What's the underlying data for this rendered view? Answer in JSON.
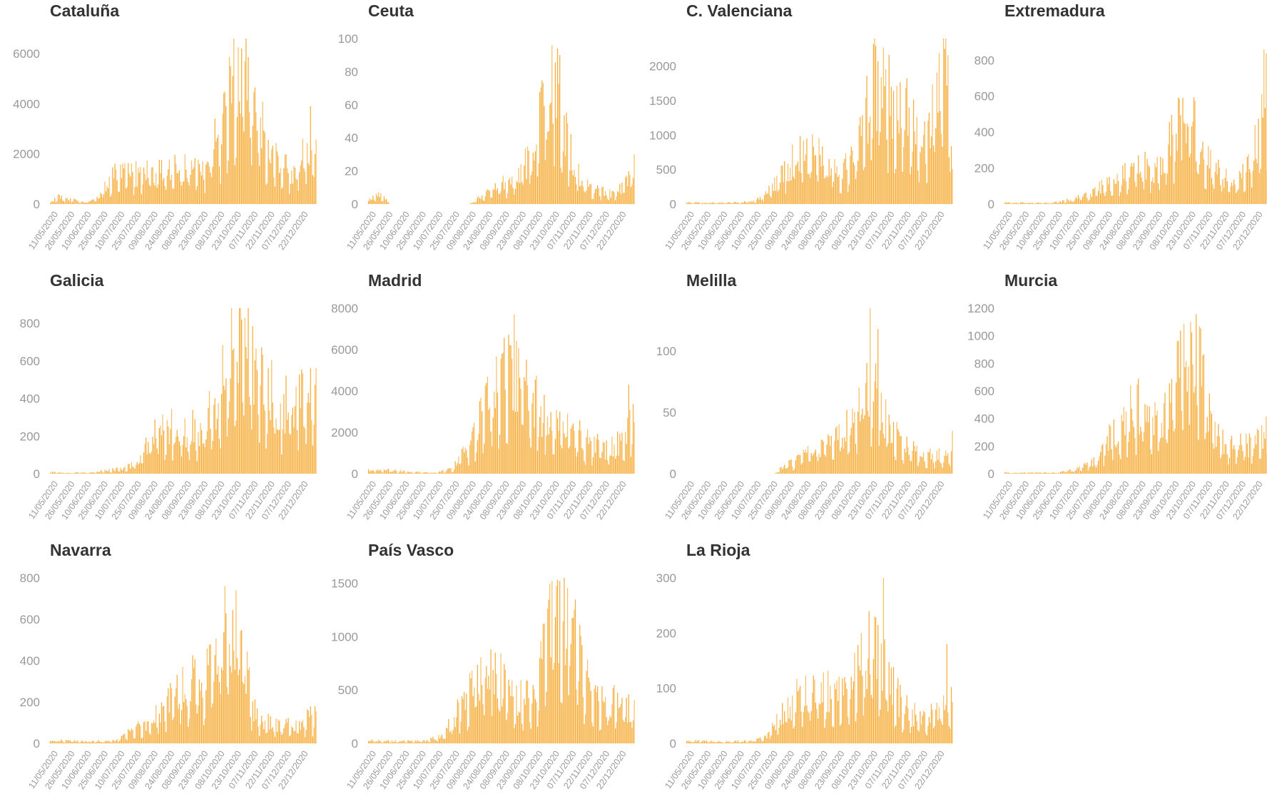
{
  "chart_data": [
    {
      "type": "bar",
      "title": "Cataluña",
      "yticks": [
        0,
        2000,
        4000,
        6000
      ],
      "ylim": [
        0,
        6600
      ],
      "xticks": [
        "11/05/2020",
        "26/05/2020",
        "10/06/2020",
        "25/06/2020",
        "10/07/2020",
        "25/07/2020",
        "09/08/2020",
        "24/08/2020",
        "08/09/2020",
        "23/09/2020",
        "08/10/2020",
        "23/10/2020",
        "07/11/2020",
        "22/11/2020",
        "07/12/2020",
        "22/12/2020"
      ],
      "profile": [
        [
          0,
          80
        ],
        [
          3,
          300
        ],
        [
          6,
          200
        ],
        [
          9,
          150
        ],
        [
          12,
          80
        ],
        [
          15,
          120
        ],
        [
          18,
          300
        ],
        [
          21,
          800
        ],
        [
          24,
          1150
        ],
        [
          30,
          1200
        ],
        [
          40,
          1300
        ],
        [
          50,
          1450
        ],
        [
          58,
          1700
        ],
        [
          63,
          2800
        ],
        [
          67,
          4300
        ],
        [
          70,
          5800
        ],
        [
          72,
          6100
        ],
        [
          75,
          5300
        ],
        [
          78,
          4200
        ],
        [
          81,
          2600
        ],
        [
          84,
          1900
        ],
        [
          88,
          1500
        ],
        [
          91,
          1250
        ],
        [
          94,
          1800
        ],
        [
          97,
          2300
        ],
        [
          100,
          2600
        ]
      ],
      "peaks": [
        [
          72,
          6200
        ],
        [
          98,
          3900
        ]
      ]
    },
    {
      "type": "bar",
      "title": "Ceuta",
      "yticks": [
        0,
        20,
        40,
        60,
        80,
        100
      ],
      "ylim": [
        0,
        100
      ],
      "xticks": [
        "11/05/2020",
        "26/05/2020",
        "10/06/2020",
        "25/06/2020",
        "10/07/2020",
        "25/07/2020",
        "09/08/2020",
        "24/08/2020",
        "08/09/2020",
        "23/09/2020",
        "08/10/2020",
        "23/10/2020",
        "07/11/2020",
        "22/11/2020",
        "07/12/2020",
        "22/12/2020"
      ],
      "profile": [
        [
          0,
          3
        ],
        [
          3,
          6
        ],
        [
          5,
          5
        ],
        [
          8,
          0
        ],
        [
          38,
          0
        ],
        [
          40,
          2
        ],
        [
          44,
          6
        ],
        [
          48,
          10
        ],
        [
          52,
          14
        ],
        [
          56,
          20
        ],
        [
          60,
          26
        ],
        [
          63,
          38
        ],
        [
          66,
          62
        ],
        [
          69,
          84
        ],
        [
          72,
          68
        ],
        [
          74,
          42
        ],
        [
          77,
          26
        ],
        [
          80,
          14
        ],
        [
          84,
          9
        ],
        [
          88,
          8
        ],
        [
          92,
          6
        ],
        [
          96,
          12
        ],
        [
          100,
          22
        ]
      ],
      "peaks": [
        [
          69,
          96
        ],
        [
          72,
          90
        ],
        [
          100,
          30
        ]
      ]
    },
    {
      "type": "bar",
      "title": "C. Valenciana",
      "yticks": [
        0,
        500,
        1000,
        1500,
        2000
      ],
      "ylim": [
        0,
        2400
      ],
      "xticks": [
        "11/05/2020",
        "26/05/2020",
        "10/06/2020",
        "25/06/2020",
        "10/07/2020",
        "25/07/2020",
        "09/08/2020",
        "24/08/2020",
        "08/09/2020",
        "23/09/2020",
        "08/10/2020",
        "23/10/2020",
        "07/11/2020",
        "22/11/2020",
        "07/12/2020",
        "22/12/2020"
      ],
      "profile": [
        [
          0,
          25
        ],
        [
          15,
          20
        ],
        [
          25,
          40
        ],
        [
          30,
          150
        ],
        [
          35,
          400
        ],
        [
          40,
          650
        ],
        [
          45,
          780
        ],
        [
          50,
          720
        ],
        [
          54,
          600
        ],
        [
          58,
          520
        ],
        [
          62,
          600
        ],
        [
          66,
          1150
        ],
        [
          70,
          1750
        ],
        [
          74,
          1850
        ],
        [
          78,
          1650
        ],
        [
          82,
          1450
        ],
        [
          86,
          1050
        ],
        [
          90,
          950
        ],
        [
          94,
          1550
        ],
        [
          97,
          2050
        ],
        [
          99,
          1500
        ],
        [
          100,
          900
        ]
      ],
      "peaks": [
        [
          75,
          1950
        ],
        [
          97,
          2250
        ]
      ]
    },
    {
      "type": "bar",
      "title": "Extremadura",
      "yticks": [
        0,
        200,
        400,
        600,
        800
      ],
      "ylim": [
        0,
        920
      ],
      "xticks": [
        "11/05/2020",
        "26/05/2020",
        "10/06/2020",
        "25/06/2020",
        "10/07/2020",
        "25/07/2020",
        "09/08/2020",
        "24/08/2020",
        "08/09/2020",
        "23/09/2020",
        "08/10/2020",
        "23/10/2020",
        "07/11/2020",
        "22/11/2020",
        "07/12/2020",
        "22/12/2020"
      ],
      "profile": [
        [
          0,
          8
        ],
        [
          18,
          8
        ],
        [
          25,
          25
        ],
        [
          32,
          60
        ],
        [
          38,
          110
        ],
        [
          44,
          180
        ],
        [
          48,
          250
        ],
        [
          52,
          210
        ],
        [
          56,
          200
        ],
        [
          60,
          260
        ],
        [
          64,
          420
        ],
        [
          68,
          520
        ],
        [
          71,
          480
        ],
        [
          74,
          320
        ],
        [
          78,
          220
        ],
        [
          82,
          160
        ],
        [
          86,
          110
        ],
        [
          90,
          180
        ],
        [
          94,
          320
        ],
        [
          97,
          580
        ],
        [
          100,
          780
        ]
      ],
      "peaks": [
        [
          67,
          590
        ],
        [
          100,
          880
        ]
      ]
    },
    {
      "type": "bar",
      "title": "Galicia",
      "yticks": [
        0,
        200,
        400,
        600,
        800
      ],
      "ylim": [
        0,
        880
      ],
      "xticks": [
        "11/05/2020",
        "26/05/2020",
        "10/06/2020",
        "25/06/2020",
        "10/07/2020",
        "25/07/2020",
        "09/08/2020",
        "24/08/2020",
        "08/09/2020",
        "23/09/2020",
        "08/10/2020",
        "23/10/2020",
        "07/11/2020",
        "22/11/2020",
        "07/12/2020",
        "22/12/2020"
      ],
      "profile": [
        [
          0,
          8
        ],
        [
          15,
          5
        ],
        [
          22,
          20
        ],
        [
          28,
          30
        ],
        [
          34,
          80
        ],
        [
          38,
          200
        ],
        [
          42,
          280
        ],
        [
          46,
          260
        ],
        [
          52,
          250
        ],
        [
          56,
          230
        ],
        [
          60,
          320
        ],
        [
          64,
          450
        ],
        [
          68,
          680
        ],
        [
          72,
          760
        ],
        [
          76,
          620
        ],
        [
          80,
          500
        ],
        [
          84,
          430
        ],
        [
          88,
          370
        ],
        [
          92,
          420
        ],
        [
          96,
          450
        ],
        [
          100,
          460
        ]
      ],
      "peaks": [
        [
          72,
          820
        ],
        [
          98,
          560
        ]
      ]
    },
    {
      "type": "bar",
      "title": "Madrid",
      "yticks": [
        0,
        2000,
        4000,
        6000,
        8000
      ],
      "ylim": [
        0,
        8000
      ],
      "xticks": [
        "11/05/2020",
        "26/05/2020",
        "10/06/2020",
        "25/06/2020",
        "10/07/2020",
        "25/07/2020",
        "09/08/2020",
        "24/08/2020",
        "08/09/2020",
        "23/09/2020",
        "08/10/2020",
        "23/10/2020",
        "07/11/2020",
        "22/11/2020",
        "07/12/2020",
        "22/12/2020"
      ],
      "profile": [
        [
          0,
          200
        ],
        [
          10,
          150
        ],
        [
          18,
          80
        ],
        [
          26,
          60
        ],
        [
          32,
          300
        ],
        [
          38,
          1500
        ],
        [
          43,
          3000
        ],
        [
          48,
          4500
        ],
        [
          53,
          5800
        ],
        [
          56,
          5200
        ],
        [
          60,
          4000
        ],
        [
          66,
          3000
        ],
        [
          72,
          2600
        ],
        [
          78,
          2000
        ],
        [
          84,
          1500
        ],
        [
          90,
          1200
        ],
        [
          94,
          1500
        ],
        [
          97,
          2500
        ],
        [
          100,
          2900
        ]
      ],
      "peaks": [
        [
          55,
          7700
        ],
        [
          98,
          4300
        ]
      ]
    },
    {
      "type": "bar",
      "title": "Melilla",
      "yticks": [
        0,
        50,
        100
      ],
      "ylim": [
        0,
        135
      ],
      "xticks": [
        "11/05/2020",
        "26/05/2020",
        "10/06/2020",
        "25/06/2020",
        "10/07/2020",
        "25/07/2020",
        "09/08/2020",
        "24/08/2020",
        "08/09/2020",
        "23/09/2020",
        "08/10/2020",
        "23/10/2020",
        "07/11/2020",
        "22/11/2020",
        "07/12/2020",
        "22/12/2020"
      ],
      "profile": [
        [
          0,
          0
        ],
        [
          33,
          0
        ],
        [
          35,
          4
        ],
        [
          40,
          10
        ],
        [
          45,
          16
        ],
        [
          50,
          24
        ],
        [
          55,
          28
        ],
        [
          60,
          38
        ],
        [
          64,
          55
        ],
        [
          68,
          85
        ],
        [
          72,
          62
        ],
        [
          76,
          42
        ],
        [
          80,
          30
        ],
        [
          84,
          22
        ],
        [
          88,
          18
        ],
        [
          92,
          16
        ],
        [
          96,
          15
        ],
        [
          100,
          20
        ]
      ],
      "peaks": [
        [
          69,
          137
        ],
        [
          72,
          118
        ],
        [
          100,
          35
        ]
      ]
    },
    {
      "type": "bar",
      "title": "Murcia",
      "yticks": [
        0,
        200,
        400,
        600,
        800,
        1000,
        1200
      ],
      "ylim": [
        0,
        1200
      ],
      "xticks": [
        "11/05/2020",
        "26/05/2020",
        "10/06/2020",
        "25/06/2020",
        "10/07/2020",
        "25/07/2020",
        "09/08/2020",
        "24/08/2020",
        "08/09/2020",
        "23/09/2020",
        "08/10/2020",
        "23/10/2020",
        "07/11/2020",
        "22/11/2020",
        "07/12/2020",
        "22/12/2020"
      ],
      "profile": [
        [
          0,
          8
        ],
        [
          20,
          8
        ],
        [
          28,
          40
        ],
        [
          34,
          100
        ],
        [
          40,
          280
        ],
        [
          46,
          430
        ],
        [
          50,
          520
        ],
        [
          54,
          470
        ],
        [
          58,
          420
        ],
        [
          62,
          500
        ],
        [
          66,
          850
        ],
        [
          70,
          1000
        ],
        [
          73,
          860
        ],
        [
          76,
          550
        ],
        [
          80,
          280
        ],
        [
          84,
          240
        ],
        [
          88,
          220
        ],
        [
          92,
          210
        ],
        [
          96,
          260
        ],
        [
          100,
          450
        ]
      ],
      "peaks": [
        [
          70,
          1100
        ],
        [
          100,
          560
        ]
      ]
    },
    {
      "type": "bar",
      "title": "Navarra",
      "yticks": [
        0,
        200,
        400,
        600,
        800
      ],
      "ylim": [
        0,
        800
      ],
      "xticks": [
        "11/05/2020",
        "26/05/2020",
        "10/06/2020",
        "25/06/2020",
        "10/07/2020",
        "25/07/2020",
        "09/08/2020",
        "24/08/2020",
        "08/09/2020",
        "23/09/2020",
        "08/10/2020",
        "23/10/2020",
        "07/11/2020",
        "22/11/2020",
        "07/12/2020",
        "22/12/2020"
      ],
      "profile": [
        [
          0,
          15
        ],
        [
          15,
          10
        ],
        [
          25,
          15
        ],
        [
          30,
          60
        ],
        [
          36,
          110
        ],
        [
          42,
          160
        ],
        [
          48,
          260
        ],
        [
          54,
          320
        ],
        [
          58,
          300
        ],
        [
          62,
          420
        ],
        [
          66,
          560
        ],
        [
          70,
          600
        ],
        [
          73,
          450
        ],
        [
          76,
          180
        ],
        [
          80,
          110
        ],
        [
          86,
          90
        ],
        [
          92,
          100
        ],
        [
          96,
          120
        ],
        [
          100,
          140
        ]
      ],
      "peaks": [
        [
          70,
          740
        ],
        [
          100,
          155
        ]
      ]
    },
    {
      "type": "bar",
      "title": "País Vasco",
      "yticks": [
        0,
        500,
        1000,
        1500
      ],
      "ylim": [
        0,
        1550
      ],
      "xticks": [
        "11/05/2020",
        "26/05/2020",
        "10/06/2020",
        "25/06/2020",
        "10/07/2020",
        "25/07/2020",
        "09/08/2020",
        "24/08/2020",
        "08/09/2020",
        "23/09/2020",
        "08/10/2020",
        "23/10/2020",
        "07/11/2020",
        "22/11/2020",
        "07/12/2020",
        "22/12/2020"
      ],
      "profile": [
        [
          0,
          30
        ],
        [
          10,
          20
        ],
        [
          22,
          25
        ],
        [
          28,
          80
        ],
        [
          34,
          320
        ],
        [
          40,
          600
        ],
        [
          46,
          680
        ],
        [
          52,
          580
        ],
        [
          56,
          450
        ],
        [
          60,
          420
        ],
        [
          64,
          650
        ],
        [
          68,
          1100
        ],
        [
          72,
          1350
        ],
        [
          76,
          1150
        ],
        [
          80,
          750
        ],
        [
          84,
          500
        ],
        [
          88,
          430
        ],
        [
          92,
          400
        ],
        [
          96,
          380
        ],
        [
          100,
          300
        ]
      ],
      "peaks": [
        [
          72,
          1520
        ],
        [
          46,
          880
        ]
      ]
    },
    {
      "type": "bar",
      "title": "La Rioja",
      "yticks": [
        0,
        100,
        200,
        300
      ],
      "ylim": [
        0,
        300
      ],
      "xticks": [
        "11/05/2020",
        "26/05/2020",
        "10/06/2020",
        "25/06/2020",
        "10/07/2020",
        "25/07/2020",
        "09/08/2020",
        "24/08/2020",
        "08/09/2020",
        "23/09/2020",
        "08/10/2020",
        "23/10/2020",
        "07/11/2020",
        "22/11/2020",
        "07/12/2020",
        "22/12/2020"
      ],
      "profile": [
        [
          0,
          5
        ],
        [
          15,
          3
        ],
        [
          25,
          5
        ],
        [
          30,
          12
        ],
        [
          35,
          50
        ],
        [
          40,
          80
        ],
        [
          45,
          100
        ],
        [
          50,
          110
        ],
        [
          55,
          95
        ],
        [
          60,
          110
        ],
        [
          64,
          140
        ],
        [
          68,
          175
        ],
        [
          72,
          160
        ],
        [
          76,
          120
        ],
        [
          80,
          80
        ],
        [
          84,
          60
        ],
        [
          88,
          50
        ],
        [
          92,
          55
        ],
        [
          96,
          70
        ],
        [
          100,
          90
        ]
      ],
      "peaks": [
        [
          74,
          300
        ],
        [
          98,
          180
        ]
      ]
    }
  ],
  "style": {
    "bar_color": "#f5ae3d",
    "bar_color_alt": "#f8c169",
    "tick_color": "#999999",
    "title_color": "#333333"
  }
}
